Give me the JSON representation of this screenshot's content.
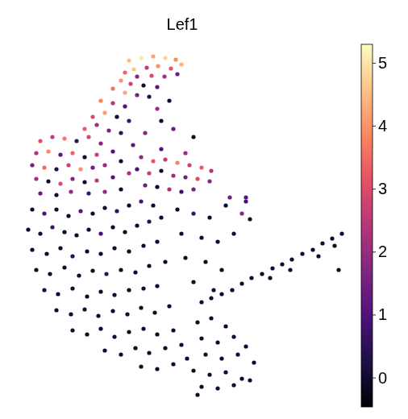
{
  "chart_data": {
    "type": "scatter",
    "title": "Lef1",
    "xlim": [
      20,
      432
    ],
    "ylim": [
      15,
      465
    ],
    "tick_labels": false,
    "grid": false,
    "color": "magma",
    "colorbar": {
      "range": [
        -0.46,
        5.3
      ],
      "ticks": [
        0,
        1,
        2,
        3,
        4,
        5
      ]
    },
    "points": [
      {
        "x": 160,
        "y": 445,
        "value": 4.5
      },
      {
        "x": 175,
        "y": 448,
        "value": 5.0
      },
      {
        "x": 190,
        "y": 450,
        "value": 4.2
      },
      {
        "x": 205,
        "y": 448,
        "value": 4.8
      },
      {
        "x": 218,
        "y": 446,
        "value": 3.9
      },
      {
        "x": 225,
        "y": 440,
        "value": 4.4
      },
      {
        "x": 212,
        "y": 435,
        "value": 3.2
      },
      {
        "x": 196,
        "y": 438,
        "value": 4.0
      },
      {
        "x": 182,
        "y": 436,
        "value": 2.6
      },
      {
        "x": 166,
        "y": 434,
        "value": 4.6
      },
      {
        "x": 155,
        "y": 430,
        "value": 3.4
      },
      {
        "x": 170,
        "y": 425,
        "value": 1.8
      },
      {
        "x": 188,
        "y": 426,
        "value": 3.0
      },
      {
        "x": 204,
        "y": 425,
        "value": 2.2
      },
      {
        "x": 220,
        "y": 428,
        "value": 1.4
      },
      {
        "x": 150,
        "y": 420,
        "value": 4.0
      },
      {
        "x": 162,
        "y": 416,
        "value": 2.8
      },
      {
        "x": 178,
        "y": 414,
        "value": 0
      },
      {
        "x": 195,
        "y": 412,
        "value": 1.2
      },
      {
        "x": 140,
        "y": 410,
        "value": 3.6
      },
      {
        "x": 155,
        "y": 405,
        "value": 4.2
      },
      {
        "x": 170,
        "y": 402,
        "value": 1.5
      },
      {
        "x": 185,
        "y": 400,
        "value": 0.4
      },
      {
        "x": 125,
        "y": 395,
        "value": 3.8
      },
      {
        "x": 140,
        "y": 392,
        "value": 2.4
      },
      {
        "x": 155,
        "y": 388,
        "value": 1.0
      },
      {
        "x": 130,
        "y": 380,
        "value": 4.1
      },
      {
        "x": 115,
        "y": 375,
        "value": 3.0
      },
      {
        "x": 145,
        "y": 375,
        "value": 0
      },
      {
        "x": 160,
        "y": 370,
        "value": 0.8
      },
      {
        "x": 120,
        "y": 365,
        "value": 2.2
      },
      {
        "x": 105,
        "y": 360,
        "value": 3.3
      },
      {
        "x": 135,
        "y": 358,
        "value": 1.6
      },
      {
        "x": 50,
        "y": 345,
        "value": 3.1
      },
      {
        "x": 65,
        "y": 350,
        "value": 2.6
      },
      {
        "x": 80,
        "y": 348,
        "value": 3.7
      },
      {
        "x": 95,
        "y": 345,
        "value": 0.5
      },
      {
        "x": 110,
        "y": 350,
        "value": 2.9
      },
      {
        "x": 125,
        "y": 342,
        "value": 1.8
      },
      {
        "x": 45,
        "y": 330,
        "value": 2.4
      },
      {
        "x": 60,
        "y": 332,
        "value": 3.9
      },
      {
        "x": 75,
        "y": 328,
        "value": 1.2
      },
      {
        "x": 90,
        "y": 330,
        "value": 3.4
      },
      {
        "x": 105,
        "y": 325,
        "value": 0
      },
      {
        "x": 120,
        "y": 328,
        "value": 2.7
      },
      {
        "x": 140,
        "y": 332,
        "value": 1.0
      },
      {
        "x": 40,
        "y": 315,
        "value": 1.6
      },
      {
        "x": 55,
        "y": 312,
        "value": 3.5
      },
      {
        "x": 70,
        "y": 310,
        "value": 0.3
      },
      {
        "x": 85,
        "y": 315,
        "value": 2.8
      },
      {
        "x": 100,
        "y": 310,
        "value": 4.0
      },
      {
        "x": 115,
        "y": 312,
        "value": 1.4
      },
      {
        "x": 130,
        "y": 315,
        "value": 2.0
      },
      {
        "x": 150,
        "y": 320,
        "value": 0
      },
      {
        "x": 45,
        "y": 298,
        "value": 2.2
      },
      {
        "x": 60,
        "y": 295,
        "value": 0
      },
      {
        "x": 75,
        "y": 292,
        "value": 3.0
      },
      {
        "x": 90,
        "y": 298,
        "value": 1.7
      },
      {
        "x": 105,
        "y": 294,
        "value": 0
      },
      {
        "x": 120,
        "y": 296,
        "value": 2.5
      },
      {
        "x": 140,
        "y": 300,
        "value": 1.1
      },
      {
        "x": 160,
        "y": 305,
        "value": 2.3
      },
      {
        "x": 50,
        "y": 280,
        "value": 1.3
      },
      {
        "x": 70,
        "y": 278,
        "value": 0
      },
      {
        "x": 88,
        "y": 282,
        "value": 2.0
      },
      {
        "x": 110,
        "y": 280,
        "value": 0.8
      },
      {
        "x": 130,
        "y": 282,
        "value": 1.9
      },
      {
        "x": 150,
        "y": 285,
        "value": 0
      },
      {
        "x": 175,
        "y": 325,
        "value": 1.9
      },
      {
        "x": 190,
        "y": 320,
        "value": 3.2
      },
      {
        "x": 205,
        "y": 322,
        "value": 2.6
      },
      {
        "x": 220,
        "y": 318,
        "value": 3.8
      },
      {
        "x": 235,
        "y": 315,
        "value": 2.8
      },
      {
        "x": 250,
        "y": 312,
        "value": 3.3
      },
      {
        "x": 262,
        "y": 308,
        "value": 2.4
      },
      {
        "x": 170,
        "y": 310,
        "value": 0.9
      },
      {
        "x": 185,
        "y": 305,
        "value": 2.7
      },
      {
        "x": 200,
        "y": 308,
        "value": 0
      },
      {
        "x": 215,
        "y": 302,
        "value": 2.1
      },
      {
        "x": 230,
        "y": 300,
        "value": 1.5
      },
      {
        "x": 245,
        "y": 298,
        "value": 3.0
      },
      {
        "x": 260,
        "y": 295,
        "value": 1.8
      },
      {
        "x": 180,
        "y": 290,
        "value": 1.4
      },
      {
        "x": 195,
        "y": 288,
        "value": 0
      },
      {
        "x": 210,
        "y": 285,
        "value": 2.3
      },
      {
        "x": 225,
        "y": 282,
        "value": 0.7
      },
      {
        "x": 240,
        "y": 285,
        "value": 1.6
      },
      {
        "x": 165,
        "y": 340,
        "value": 1.2
      },
      {
        "x": 200,
        "y": 335,
        "value": 1.0
      },
      {
        "x": 230,
        "y": 330,
        "value": 2.0
      },
      {
        "x": 150,
        "y": 355,
        "value": 0.6
      },
      {
        "x": 180,
        "y": 355,
        "value": 1.7
      },
      {
        "x": 200,
        "y": 370,
        "value": 0
      },
      {
        "x": 215,
        "y": 360,
        "value": 1.3
      },
      {
        "x": 240,
        "y": 350,
        "value": 0
      },
      {
        "x": 195,
        "y": 385,
        "value": 2.1
      },
      {
        "x": 210,
        "y": 395,
        "value": 0
      },
      {
        "x": 40,
        "y": 260,
        "value": 0
      },
      {
        "x": 55,
        "y": 255,
        "value": 0.9
      },
      {
        "x": 70,
        "y": 260,
        "value": 0
      },
      {
        "x": 85,
        "y": 252,
        "value": 0
      },
      {
        "x": 100,
        "y": 258,
        "value": 1.1
      },
      {
        "x": 115,
        "y": 255,
        "value": 0
      },
      {
        "x": 130,
        "y": 262,
        "value": 0
      },
      {
        "x": 145,
        "y": 258,
        "value": 0.6
      },
      {
        "x": 160,
        "y": 265,
        "value": 0
      },
      {
        "x": 175,
        "y": 270,
        "value": 1.0
      },
      {
        "x": 190,
        "y": 265,
        "value": 0
      },
      {
        "x": 35,
        "y": 235,
        "value": 0
      },
      {
        "x": 50,
        "y": 230,
        "value": 0
      },
      {
        "x": 65,
        "y": 238,
        "value": 0.7
      },
      {
        "x": 80,
        "y": 232,
        "value": 0
      },
      {
        "x": 95,
        "y": 228,
        "value": 0
      },
      {
        "x": 110,
        "y": 235,
        "value": 0
      },
      {
        "x": 125,
        "y": 230,
        "value": 0.8
      },
      {
        "x": 140,
        "y": 238,
        "value": 0
      },
      {
        "x": 155,
        "y": 232,
        "value": 0
      },
      {
        "x": 170,
        "y": 240,
        "value": 0
      },
      {
        "x": 185,
        "y": 245,
        "value": 0.5
      },
      {
        "x": 200,
        "y": 250,
        "value": 0
      },
      {
        "x": 40,
        "y": 210,
        "value": 0
      },
      {
        "x": 58,
        "y": 205,
        "value": 0
      },
      {
        "x": 75,
        "y": 212,
        "value": 0
      },
      {
        "x": 90,
        "y": 202,
        "value": 0.4
      },
      {
        "x": 108,
        "y": 208,
        "value": 0
      },
      {
        "x": 125,
        "y": 205,
        "value": 0
      },
      {
        "x": 142,
        "y": 212,
        "value": 0
      },
      {
        "x": 160,
        "y": 208,
        "value": 0
      },
      {
        "x": 178,
        "y": 215,
        "value": 0
      },
      {
        "x": 195,
        "y": 220,
        "value": 0
      },
      {
        "x": 45,
        "y": 185,
        "value": 0
      },
      {
        "x": 62,
        "y": 180,
        "value": 0
      },
      {
        "x": 80,
        "y": 188,
        "value": 0
      },
      {
        "x": 98,
        "y": 178,
        "value": 0
      },
      {
        "x": 115,
        "y": 184,
        "value": 0
      },
      {
        "x": 132,
        "y": 180,
        "value": 0.6
      },
      {
        "x": 150,
        "y": 185,
        "value": 0
      },
      {
        "x": 168,
        "y": 182,
        "value": 0
      },
      {
        "x": 185,
        "y": 190,
        "value": 0
      },
      {
        "x": 205,
        "y": 195,
        "value": 0
      },
      {
        "x": 55,
        "y": 160,
        "value": 0
      },
      {
        "x": 72,
        "y": 155,
        "value": 0
      },
      {
        "x": 90,
        "y": 162,
        "value": 0
      },
      {
        "x": 108,
        "y": 152,
        "value": 0
      },
      {
        "x": 125,
        "y": 158,
        "value": 0
      },
      {
        "x": 142,
        "y": 154,
        "value": 0
      },
      {
        "x": 160,
        "y": 160,
        "value": 0
      },
      {
        "x": 178,
        "y": 162,
        "value": 0
      },
      {
        "x": 195,
        "y": 165,
        "value": 0
      },
      {
        "x": 70,
        "y": 135,
        "value": 0
      },
      {
        "x": 88,
        "y": 130,
        "value": 0
      },
      {
        "x": 105,
        "y": 136,
        "value": 0
      },
      {
        "x": 122,
        "y": 128,
        "value": 0
      },
      {
        "x": 140,
        "y": 134,
        "value": 0
      },
      {
        "x": 158,
        "y": 130,
        "value": 0
      },
      {
        "x": 175,
        "y": 138,
        "value": 0
      },
      {
        "x": 192,
        "y": 132,
        "value": 0
      },
      {
        "x": 210,
        "y": 140,
        "value": 0
      },
      {
        "x": 90,
        "y": 110,
        "value": 0
      },
      {
        "x": 108,
        "y": 105,
        "value": 0
      },
      {
        "x": 125,
        "y": 112,
        "value": 0
      },
      {
        "x": 142,
        "y": 102,
        "value": 0
      },
      {
        "x": 160,
        "y": 108,
        "value": 0
      },
      {
        "x": 178,
        "y": 112,
        "value": 0
      },
      {
        "x": 195,
        "y": 105,
        "value": 0
      },
      {
        "x": 215,
        "y": 110,
        "value": 0
      },
      {
        "x": 130,
        "y": 85,
        "value": 0
      },
      {
        "x": 150,
        "y": 80,
        "value": 0
      },
      {
        "x": 168,
        "y": 88,
        "value": 0
      },
      {
        "x": 185,
        "y": 82,
        "value": 0
      },
      {
        "x": 205,
        "y": 88,
        "value": 0
      },
      {
        "x": 225,
        "y": 92,
        "value": 0
      },
      {
        "x": 175,
        "y": 65,
        "value": 0
      },
      {
        "x": 195,
        "y": 62,
        "value": 0
      },
      {
        "x": 215,
        "y": 68,
        "value": 0
      },
      {
        "x": 220,
        "y": 260,
        "value": 0
      },
      {
        "x": 240,
        "y": 255,
        "value": 0.7
      },
      {
        "x": 260,
        "y": 250,
        "value": 0
      },
      {
        "x": 280,
        "y": 265,
        "value": 0
      },
      {
        "x": 300,
        "y": 255,
        "value": 1.8
      },
      {
        "x": 305,
        "y": 270,
        "value": 0.9
      },
      {
        "x": 310,
        "y": 248,
        "value": 0
      },
      {
        "x": 225,
        "y": 230,
        "value": 0
      },
      {
        "x": 250,
        "y": 225,
        "value": 0
      },
      {
        "x": 270,
        "y": 220,
        "value": 0
      },
      {
        "x": 290,
        "y": 230,
        "value": 0
      },
      {
        "x": 230,
        "y": 200,
        "value": 0
      },
      {
        "x": 255,
        "y": 195,
        "value": 0
      },
      {
        "x": 275,
        "y": 185,
        "value": 0
      },
      {
        "x": 240,
        "y": 170,
        "value": 0
      },
      {
        "x": 265,
        "y": 160,
        "value": 0
      },
      {
        "x": 285,
        "y": 275,
        "value": 1.5
      },
      {
        "x": 305,
        "y": 275,
        "value": 1.1
      },
      {
        "x": 245,
        "y": 120,
        "value": 0
      },
      {
        "x": 262,
        "y": 125,
        "value": 0
      },
      {
        "x": 280,
        "y": 115,
        "value": 0
      },
      {
        "x": 250,
        "y": 100,
        "value": 0
      },
      {
        "x": 270,
        "y": 95,
        "value": 0
      },
      {
        "x": 290,
        "y": 102,
        "value": 0
      },
      {
        "x": 305,
        "y": 90,
        "value": 0
      },
      {
        "x": 255,
        "y": 80,
        "value": 0
      },
      {
        "x": 275,
        "y": 75,
        "value": 0
      },
      {
        "x": 295,
        "y": 80,
        "value": 0
      },
      {
        "x": 315,
        "y": 70,
        "value": 0
      },
      {
        "x": 240,
        "y": 60,
        "value": 0
      },
      {
        "x": 260,
        "y": 55,
        "value": 0
      },
      {
        "x": 280,
        "y": 58,
        "value": 0
      },
      {
        "x": 300,
        "y": 50,
        "value": 0
      },
      {
        "x": 250,
        "y": 40,
        "value": 0
      },
      {
        "x": 270,
        "y": 38,
        "value": 0
      },
      {
        "x": 290,
        "y": 42,
        "value": 0
      },
      {
        "x": 310,
        "y": 48,
        "value": 0
      },
      {
        "x": 245,
        "y": 30,
        "value": 0
      },
      {
        "x": 232,
        "y": 75,
        "value": 0
      },
      {
        "x": 250,
        "y": 145,
        "value": 0
      },
      {
        "x": 262,
        "y": 150,
        "value": 0
      },
      {
        "x": 275,
        "y": 155,
        "value": 0
      },
      {
        "x": 288,
        "y": 160,
        "value": 0
      },
      {
        "x": 300,
        "y": 168,
        "value": 0
      },
      {
        "x": 312,
        "y": 175,
        "value": 0
      },
      {
        "x": 325,
        "y": 180,
        "value": 0
      },
      {
        "x": 338,
        "y": 187,
        "value": 0
      },
      {
        "x": 350,
        "y": 192,
        "value": 0
      },
      {
        "x": 362,
        "y": 198,
        "value": 0
      },
      {
        "x": 375,
        "y": 205,
        "value": 0
      },
      {
        "x": 388,
        "y": 210,
        "value": 0
      },
      {
        "x": 400,
        "y": 218,
        "value": 0
      },
      {
        "x": 412,
        "y": 224,
        "value": 0
      },
      {
        "x": 424,
        "y": 230,
        "value": 0
      },
      {
        "x": 335,
        "y": 175,
        "value": 0
      },
      {
        "x": 360,
        "y": 185,
        "value": 0
      },
      {
        "x": 395,
        "y": 202,
        "value": 0
      },
      {
        "x": 415,
        "y": 215,
        "value": 0
      },
      {
        "x": 420,
        "y": 185,
        "value": 0
      }
    ]
  }
}
